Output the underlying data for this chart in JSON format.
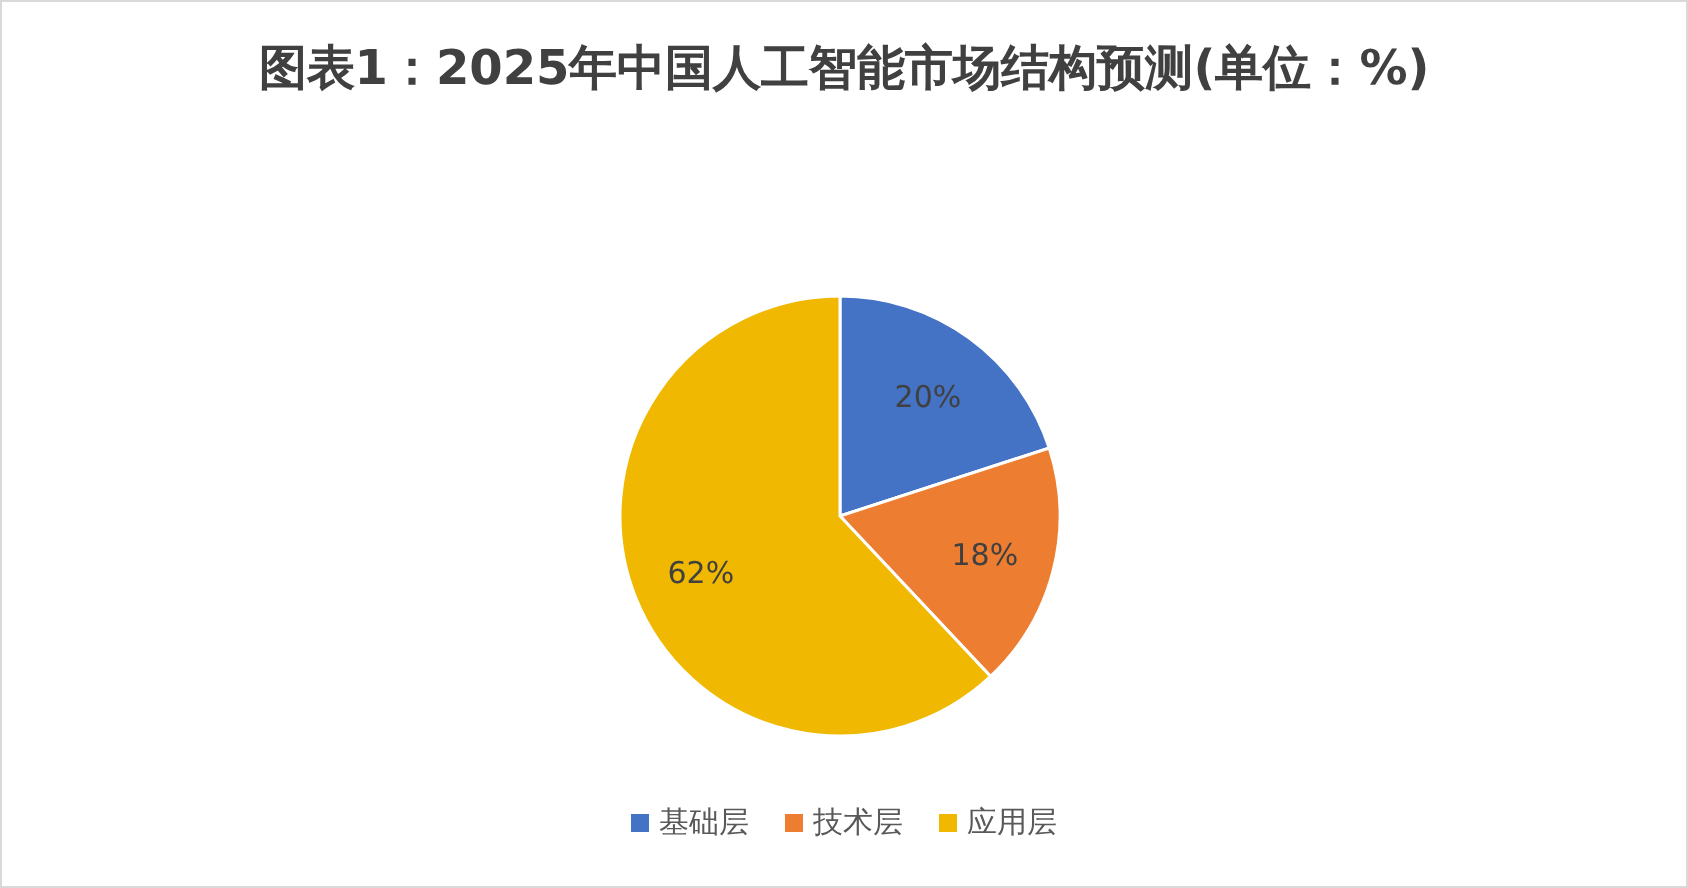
{
  "chart_data": {
    "type": "pie",
    "title": "图表1：2025年中国人工智能市场结构预测(单位：%)",
    "categories": [
      "基础层",
      "技术层",
      "应用层"
    ],
    "values": [
      20,
      18,
      62
    ],
    "colors": [
      "#4472c4",
      "#ed7d31",
      "#f0b800"
    ],
    "value_labels": [
      "20%",
      "18%",
      "62%"
    ],
    "legend": "bottom"
  }
}
